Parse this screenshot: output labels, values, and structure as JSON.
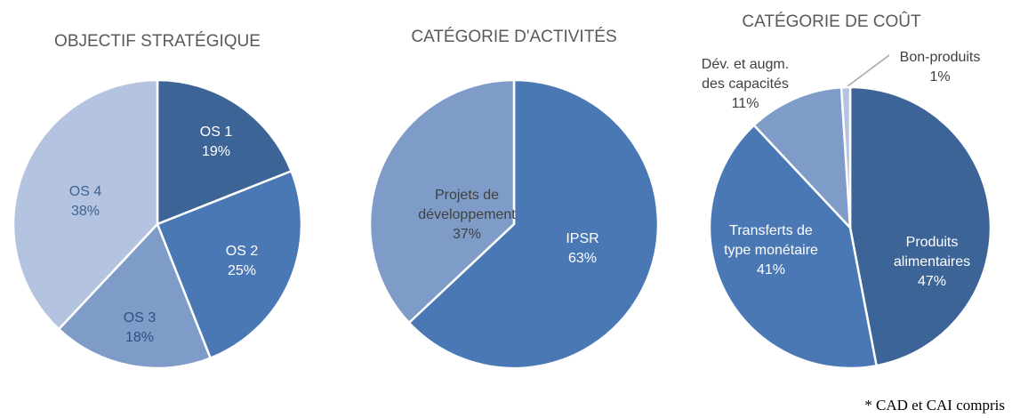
{
  "chart_data": [
    {
      "type": "pie",
      "title": "OBJECTIF STRATÉGIQUE",
      "categories": [
        "OS 1",
        "OS 2",
        "OS 3",
        "OS 4"
      ],
      "values": [
        19,
        25,
        18,
        38
      ],
      "value_labels": [
        "19%",
        "25%",
        "18%",
        "38%"
      ],
      "colors": [
        "#3d6496",
        "#4a78b4",
        "#7f9cc8",
        "#b4c3df"
      ]
    },
    {
      "type": "pie",
      "title": "CATÉGORIE D'ACTIVITÉS",
      "categories": [
        "IPSR",
        "Projets de développement"
      ],
      "values": [
        63,
        37
      ],
      "value_labels": [
        "63%",
        "37%"
      ],
      "colors": [
        "#4a78b4",
        "#7f9cc8"
      ]
    },
    {
      "type": "pie",
      "title": "CATÉGORIE DE COÛT",
      "categories": [
        "Produits alimentaires",
        "Transferts de type monétaire",
        "Dév. et augm. des capacités",
        "Bon-produits"
      ],
      "values": [
        47,
        41,
        11,
        1
      ],
      "value_labels": [
        "47%",
        "41%",
        "11%",
        "1%"
      ],
      "colors": [
        "#3d6496",
        "#4a78b4",
        "#7f9cc8",
        "#b4c3df"
      ]
    }
  ],
  "footnote": "* CAD et CAI compris"
}
